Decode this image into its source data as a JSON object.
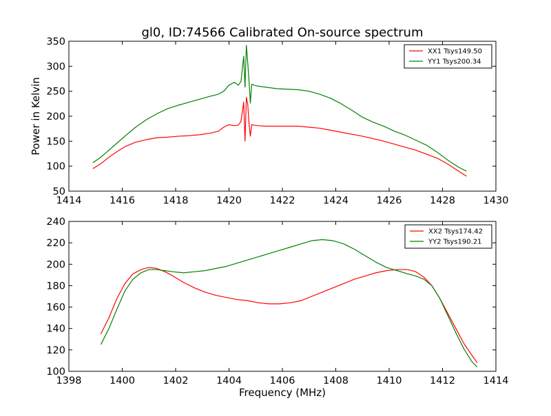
{
  "chart_data": [
    {
      "type": "line",
      "title": "gl0, ID:74566 Calibrated On-source spectrum",
      "xlabel": "",
      "ylabel": "Power in Kelvin",
      "xlim": [
        1414,
        1430
      ],
      "ylim": [
        50,
        350
      ],
      "xticks": [
        "1414",
        "1416",
        "1418",
        "1420",
        "1422",
        "1424",
        "1426",
        "1428",
        "1430"
      ],
      "yticks": [
        "50",
        "100",
        "150",
        "200",
        "250",
        "300",
        "350"
      ],
      "grid": false,
      "legend_position": "top-right",
      "series": [
        {
          "name": "XX1 Tsys149.50",
          "color": "#ff0000",
          "x": [
            1414.9,
            1415.2,
            1415.5,
            1415.8,
            1416.1,
            1416.5,
            1416.9,
            1417.3,
            1417.7,
            1418.1,
            1418.5,
            1418.9,
            1419.3,
            1419.6,
            1419.8,
            1420.0,
            1420.2,
            1420.35,
            1420.45,
            1420.55,
            1420.6,
            1420.65,
            1420.7,
            1420.75,
            1420.8,
            1420.85,
            1420.95,
            1421.1,
            1421.4,
            1421.8,
            1422.2,
            1422.6,
            1423.0,
            1423.4,
            1423.8,
            1424.2,
            1424.6,
            1425.0,
            1425.4,
            1425.8,
            1426.2,
            1426.6,
            1427.0,
            1427.4,
            1427.8,
            1428.2,
            1428.6,
            1428.9
          ],
          "y": [
            95,
            105,
            118,
            129,
            139,
            148,
            153,
            157,
            158,
            160,
            161,
            163,
            166,
            170,
            178,
            183,
            181,
            182,
            190,
            228,
            150,
            238,
            225,
            185,
            160,
            183,
            182,
            181,
            180,
            180,
            180,
            180,
            178,
            176,
            172,
            168,
            164,
            160,
            155,
            150,
            144,
            138,
            132,
            124,
            116,
            104,
            90,
            80
          ]
        },
        {
          "name": "YY1 Tsys200.34",
          "color": "#008000",
          "x": [
            1414.9,
            1415.2,
            1415.5,
            1415.8,
            1416.1,
            1416.5,
            1416.9,
            1417.3,
            1417.7,
            1418.1,
            1418.5,
            1418.9,
            1419.3,
            1419.6,
            1419.8,
            1420.0,
            1420.2,
            1420.35,
            1420.45,
            1420.55,
            1420.6,
            1420.65,
            1420.7,
            1420.75,
            1420.8,
            1420.85,
            1420.95,
            1421.1,
            1421.4,
            1421.8,
            1422.2,
            1422.6,
            1423.0,
            1423.4,
            1423.8,
            1424.2,
            1424.6,
            1425.0,
            1425.4,
            1425.8,
            1426.2,
            1426.6,
            1427.0,
            1427.4,
            1427.8,
            1428.2,
            1428.6,
            1428.9
          ],
          "y": [
            107,
            118,
            132,
            146,
            160,
            178,
            193,
            205,
            215,
            222,
            228,
            234,
            240,
            244,
            250,
            262,
            268,
            262,
            270,
            320,
            258,
            342,
            308,
            270,
            226,
            264,
            262,
            260,
            258,
            255,
            254,
            253,
            250,
            244,
            236,
            225,
            212,
            198,
            188,
            180,
            170,
            162,
            152,
            142,
            128,
            112,
            98,
            90
          ]
        }
      ]
    },
    {
      "type": "line",
      "title": "",
      "xlabel": "Frequency (MHz)",
      "ylabel": "",
      "xlim": [
        1398,
        1414
      ],
      "ylim": [
        100,
        240
      ],
      "xticks": [
        "1398",
        "1400",
        "1402",
        "1404",
        "1406",
        "1408",
        "1410",
        "1412",
        "1414"
      ],
      "yticks": [
        "100",
        "120",
        "140",
        "160",
        "180",
        "200",
        "220",
        "240"
      ],
      "grid": false,
      "legend_position": "top-right",
      "series": [
        {
          "name": "XX2 Tsys174.42",
          "color": "#ff0000",
          "x": [
            1399.2,
            1399.5,
            1399.8,
            1400.1,
            1400.4,
            1400.7,
            1401.0,
            1401.3,
            1401.6,
            1401.9,
            1402.3,
            1402.7,
            1403.1,
            1403.5,
            1403.9,
            1404.3,
            1404.7,
            1405.1,
            1405.5,
            1405.9,
            1406.3,
            1406.7,
            1407.1,
            1407.5,
            1407.9,
            1408.3,
            1408.7,
            1409.1,
            1409.5,
            1409.9,
            1410.3,
            1410.7,
            1411.0,
            1411.3,
            1411.6,
            1411.9,
            1412.2,
            1412.5,
            1412.8,
            1413.1,
            1413.3
          ],
          "y": [
            135,
            150,
            168,
            182,
            191,
            195,
            197,
            196,
            193,
            189,
            183,
            178,
            174,
            171,
            169,
            167,
            166,
            164,
            163,
            163,
            164,
            166,
            170,
            174,
            178,
            182,
            186,
            189,
            192,
            194,
            195,
            195,
            193,
            188,
            180,
            168,
            154,
            140,
            126,
            115,
            108
          ]
        },
        {
          "name": "YY2 Tsys190.21",
          "color": "#008000",
          "x": [
            1399.2,
            1399.5,
            1399.8,
            1400.1,
            1400.4,
            1400.7,
            1401.0,
            1401.3,
            1401.6,
            1401.9,
            1402.3,
            1402.7,
            1403.1,
            1403.5,
            1403.9,
            1404.3,
            1404.7,
            1405.1,
            1405.5,
            1405.9,
            1406.3,
            1406.7,
            1407.1,
            1407.5,
            1407.9,
            1408.3,
            1408.7,
            1409.1,
            1409.5,
            1409.9,
            1410.3,
            1410.7,
            1411.0,
            1411.3,
            1411.6,
            1411.9,
            1412.2,
            1412.5,
            1412.8,
            1413.1,
            1413.3
          ],
          "y": [
            125,
            140,
            158,
            175,
            186,
            192,
            195,
            195,
            194,
            193,
            192,
            193,
            194,
            196,
            198,
            201,
            204,
            207,
            210,
            213,
            216,
            219,
            222,
            223,
            222,
            219,
            214,
            208,
            202,
            197,
            194,
            191,
            189,
            186,
            180,
            168,
            152,
            136,
            121,
            109,
            104
          ]
        }
      ]
    }
  ]
}
